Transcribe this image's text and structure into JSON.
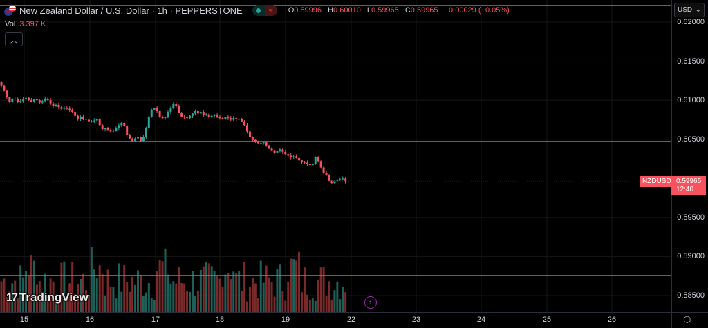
{
  "header": {
    "symbol_title": "New Zealand Dollar / U.S. Dollar · 1h · PEPPERSTONE",
    "market_status_icon": "market-closed-icon",
    "ohlc": {
      "o_label": "O",
      "o_value": "0.59996",
      "h_label": "H",
      "h_value": "0.60010",
      "l_label": "L",
      "l_value": "0.59965",
      "c_label": "C",
      "c_value": "0.59965",
      "change": "−0.00029 (−0.05%)"
    },
    "volume": {
      "label": "Vol",
      "value": "3.397 K"
    },
    "collapse_icon": "chevron-up-icon"
  },
  "price_axis": {
    "currency": "USD",
    "ticks": [
      "0.62000",
      "0.61500",
      "0.61000",
      "0.60500",
      "0.59500",
      "0.59000",
      "0.58500"
    ]
  },
  "price_marker": {
    "symbol": "NZDUSD",
    "price": "0.59965",
    "countdown": "12:40"
  },
  "time_axis": {
    "ticks": [
      "15",
      "16",
      "17",
      "18",
      "19",
      "22",
      "23",
      "24",
      "25",
      "26"
    ]
  },
  "branding": {
    "logo_text": "TradingView",
    "logo_mark": "17"
  },
  "colors": {
    "up": "#26a69a",
    "down": "#f7525f",
    "vol_up": "#1e5f58",
    "vol_down": "#7a2a2a",
    "hline": "#22c22b",
    "axis_text": "#d1d4dc",
    "grid": "#161616"
  },
  "chart_data": {
    "type": "candlestick",
    "title": "New Zealand Dollar / U.S. Dollar · 1h · PEPPERSTONE",
    "xlabel": "",
    "ylabel": "",
    "ylim": [
      0.5835,
      0.6228
    ],
    "x_tick_labels": [
      "15",
      "16",
      "17",
      "18",
      "19",
      "22",
      "23",
      "24",
      "25",
      "26"
    ],
    "y_tick_labels": [
      "0.62000",
      "0.61500",
      "0.61000",
      "0.60500",
      "0.59500",
      "0.59000",
      "0.58500"
    ],
    "horizontal_lines": [
      0.6221,
      0.6047,
      0.5876
    ],
    "last": {
      "open": 0.59996,
      "high": 0.6001,
      "low": 0.59965,
      "close": 0.59965,
      "change": -0.00029,
      "change_pct": -0.05
    },
    "current_price": 0.59965,
    "volume_last": "3.397 K",
    "closes": [
      0.6119,
      0.6112,
      0.6104,
      0.6098,
      0.6102,
      0.6101,
      0.6098,
      0.6099,
      0.6101,
      0.6103,
      0.61,
      0.6098,
      0.6101,
      0.61,
      0.6097,
      0.6099,
      0.6102,
      0.61,
      0.6096,
      0.6093,
      0.6094,
      0.6091,
      0.6089,
      0.609,
      0.6089,
      0.6087,
      0.6085,
      0.608,
      0.6076,
      0.6079,
      0.6076,
      0.6075,
      0.6073,
      0.6073,
      0.6074,
      0.6076,
      0.6068,
      0.6063,
      0.6064,
      0.6062,
      0.606,
      0.6061,
      0.6064,
      0.6068,
      0.6071,
      0.6067,
      0.6055,
      0.6051,
      0.6048,
      0.6051,
      0.6053,
      0.6048,
      0.6053,
      0.6064,
      0.6079,
      0.6088,
      0.609,
      0.6086,
      0.6079,
      0.6077,
      0.6078,
      0.6085,
      0.609,
      0.6095,
      0.6093,
      0.6084,
      0.6079,
      0.6078,
      0.6077,
      0.608,
      0.6083,
      0.6086,
      0.6083,
      0.6085,
      0.6081,
      0.6082,
      0.6078,
      0.608,
      0.6081,
      0.6079,
      0.6077,
      0.6076,
      0.6078,
      0.6077,
      0.6075,
      0.6077,
      0.6076,
      0.6076,
      0.6073,
      0.6068,
      0.606,
      0.6053,
      0.6049,
      0.6047,
      0.6045,
      0.6045,
      0.6046,
      0.6042,
      0.6038,
      0.6036,
      0.6033,
      0.6035,
      0.6037,
      0.6034,
      0.6031,
      0.6029,
      0.6027,
      0.6028,
      0.6026,
      0.6023,
      0.6021,
      0.602,
      0.6018,
      0.6017,
      0.6018,
      0.6027,
      0.6022,
      0.6014,
      0.6007,
      0.6004,
      0.5997,
      0.5994,
      0.5997,
      0.5998,
      0.5999,
      0.6,
      0.5996
    ]
  }
}
